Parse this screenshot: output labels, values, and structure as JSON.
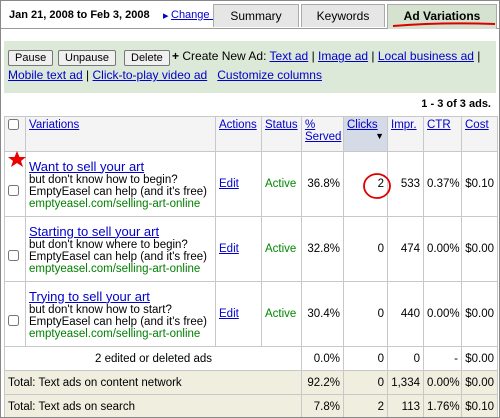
{
  "date_range": "Jan 21, 2008 to Feb 3, 2008",
  "change_range": "Change range",
  "tabs": [
    "Summary",
    "Keywords",
    "Ad Variations"
  ],
  "buttons": [
    "Pause",
    "Unpause",
    "Delete"
  ],
  "create_label": "Create New Ad:",
  "create_links": [
    "Text ad",
    "Image ad",
    "Local business ad",
    "Mobile text ad",
    "Click-to-play video ad"
  ],
  "customize": "Customize columns",
  "pagination": "1 - 3 of 3 ads.",
  "columns": [
    "Variations",
    "Actions",
    "Status",
    "% Served",
    "Clicks",
    "Impr.",
    "CTR",
    "Cost"
  ],
  "ads": [
    {
      "title": "Want to sell your art",
      "line1": "but don't know how to begin?",
      "line2": "EmptyEasel can help (and it's free)",
      "url": "emptyeasel.com/selling-art-online",
      "action": "Edit",
      "status": "Active",
      "served": "36.8%",
      "clicks": "2",
      "impr": "533",
      "ctr": "0.37%",
      "cost": "$0.10"
    },
    {
      "title": "Starting to sell your art",
      "line1": "but don't know where to begin?",
      "line2": "EmptyEasel can help (and it's free)",
      "url": "emptyeasel.com/selling-art-online",
      "action": "Edit",
      "status": "Active",
      "served": "32.8%",
      "clicks": "0",
      "impr": "474",
      "ctr": "0.00%",
      "cost": "$0.00"
    },
    {
      "title": "Trying to sell your art",
      "line1": "but don't know how to start?",
      "line2": "EmptyEasel can help (and it's free)",
      "url": "emptyeasel.com/selling-art-online",
      "action": "Edit",
      "status": "Active",
      "served": "30.4%",
      "clicks": "0",
      "impr": "440",
      "ctr": "0.00%",
      "cost": "$0.00"
    }
  ],
  "summary_rows": [
    {
      "label": "2 edited or deleted ads",
      "served": "0.0%",
      "clicks": "0",
      "impr": "0",
      "ctr": "-",
      "cost": "$0.00"
    },
    {
      "label": "Total: Text ads on content network",
      "served": "92.2%",
      "clicks": "0",
      "impr": "1,334",
      "ctr": "0.00%",
      "cost": "$0.00"
    },
    {
      "label": "Total: Text ads on search",
      "served": "7.8%",
      "clicks": "2",
      "impr": "113",
      "ctr": "1.76%",
      "cost": "$0.10"
    }
  ]
}
